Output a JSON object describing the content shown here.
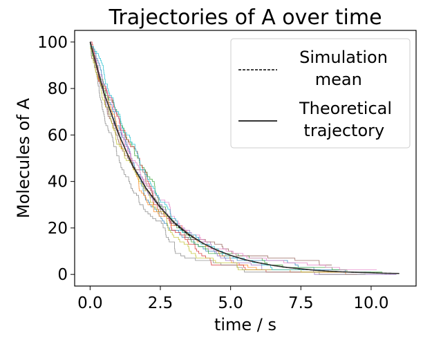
{
  "chart_data": {
    "type": "line",
    "title": "Trajectories of A over time",
    "xlabel": "time / s",
    "ylabel": "Molecules of A",
    "xlim": [
      -0.55,
      11.6
    ],
    "ylim": [
      -5,
      105
    ],
    "xticks": [
      0.0,
      2.5,
      5.0,
      7.5,
      10.0
    ],
    "xtick_labels": [
      "0.0",
      "2.5",
      "5.0",
      "7.5",
      "10.0"
    ],
    "yticks": [
      0,
      20,
      40,
      60,
      80,
      100
    ],
    "ytick_labels": [
      "0",
      "20",
      "40",
      "60",
      "80",
      "100"
    ],
    "grid": false,
    "legend": {
      "position": "top-right",
      "entries": [
        {
          "label_lines": [
            "Simulation",
            " mean"
          ],
          "style": "dashed",
          "color": "#000000"
        },
        {
          "label_lines": [
            "Theoretical",
            " trajectory"
          ],
          "style": "solid",
          "color": "#333333"
        }
      ]
    },
    "simulations": {
      "count": 10,
      "initial_molecules": 100,
      "rate_constant": 0.5,
      "style": "step",
      "colors": [
        "#1f77b4",
        "#ff7f0e",
        "#2ca02c",
        "#d62728",
        "#9467bd",
        "#8c564b",
        "#e377c2",
        "#7f7f7f",
        "#bcbd22",
        "#17becf"
      ],
      "end_times": [
        10.0,
        9.5,
        10.4,
        9.0,
        10.9,
        8.6,
        10.2,
        9.8,
        9.3,
        8.2
      ]
    },
    "series": [
      {
        "name": "Simulation mean",
        "style": "dashed",
        "x": [
          0,
          0.5,
          1,
          1.5,
          2,
          2.5,
          3,
          3.5,
          4,
          4.5,
          5,
          5.5,
          6,
          6.5,
          7,
          7.5,
          8,
          8.5,
          9,
          9.5,
          10,
          10.5,
          11
        ],
        "y": [
          100,
          78,
          61,
          47,
          37,
          29,
          22,
          17,
          13.5,
          10.5,
          8.2,
          6.3,
          5,
          3.9,
          3.0,
          2.3,
          1.8,
          1.4,
          1.1,
          0.9,
          0.7,
          0.5,
          0.4
        ]
      },
      {
        "name": "Theoretical trajectory",
        "style": "solid",
        "x": [
          0,
          0.5,
          1,
          1.5,
          2,
          2.5,
          3,
          3.5,
          4,
          4.5,
          5,
          5.5,
          6,
          6.5,
          7,
          7.5,
          8,
          8.5,
          9,
          9.5,
          10,
          10.5,
          11
        ],
        "y": [
          100,
          77.9,
          60.7,
          47.2,
          36.8,
          28.7,
          22.3,
          17.4,
          13.5,
          10.5,
          8.2,
          6.4,
          5.0,
          3.9,
          3.0,
          2.4,
          1.8,
          1.4,
          1.1,
          0.9,
          0.7,
          0.5,
          0.4
        ]
      }
    ]
  }
}
